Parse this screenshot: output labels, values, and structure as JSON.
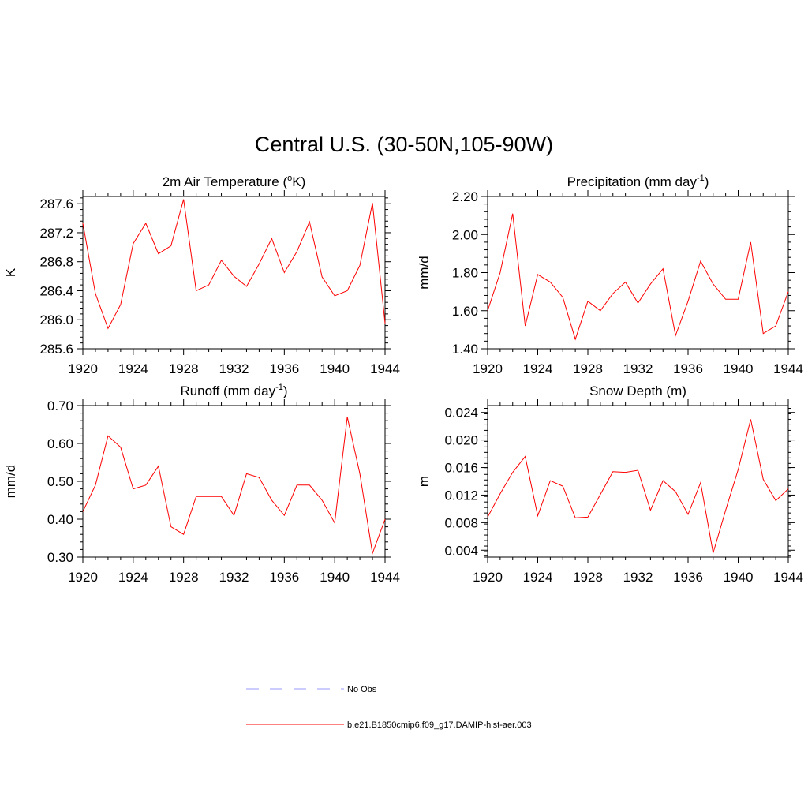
{
  "title": "Central U.S. (30-50N,105-90W)",
  "legend": {
    "entries": [
      {
        "label": "No Obs",
        "color": "#9999ff",
        "dash": true
      },
      {
        "label": "b.e21.B1850cmip6.f09_g17.DAMIP-hist-aer.003",
        "color": "#ff0000",
        "dash": false
      }
    ]
  },
  "chart_data": [
    {
      "type": "line",
      "title": "2m Air Temperature (",
      "title_sup": "o",
      "title_tail": "K)",
      "ylabel": "K",
      "xlim": [
        1920,
        1944
      ],
      "ylim": [
        285.6,
        287.7
      ],
      "xticks": [
        1920,
        1924,
        1928,
        1932,
        1936,
        1940,
        1944
      ],
      "yticks": [
        285.6,
        286.0,
        286.4,
        286.8,
        287.2,
        287.6
      ],
      "ytick_labels": [
        "285.6",
        "286.0",
        "286.4",
        "286.8",
        "287.2",
        "287.6"
      ],
      "x": [
        1920,
        1921,
        1922,
        1923,
        1924,
        1925,
        1926,
        1927,
        1928,
        1929,
        1930,
        1931,
        1932,
        1933,
        1934,
        1935,
        1936,
        1937,
        1938,
        1939,
        1940,
        1941,
        1942,
        1943,
        1944
      ],
      "series": [
        {
          "values": [
            287.33,
            286.36,
            285.88,
            286.21,
            287.05,
            287.33,
            286.91,
            287.02,
            287.66,
            286.4,
            286.48,
            286.82,
            286.6,
            286.46,
            286.77,
            287.12,
            286.65,
            286.94,
            287.35,
            286.59,
            286.33,
            286.4,
            286.75,
            287.61,
            285.95
          ]
        }
      ]
    },
    {
      "type": "line",
      "title": "Precipitation (mm day",
      "title_sup": "-1",
      "title_tail": ")",
      "ylabel": "mm/d",
      "xlim": [
        1920,
        1944
      ],
      "ylim": [
        1.4,
        2.2
      ],
      "xticks": [
        1920,
        1924,
        1928,
        1932,
        1936,
        1940,
        1944
      ],
      "yticks": [
        1.4,
        1.6,
        1.8,
        2.0,
        2.2
      ],
      "ytick_labels": [
        "1.40",
        "1.60",
        "1.80",
        "2.00",
        "2.20"
      ],
      "x": [
        1920,
        1921,
        1922,
        1923,
        1924,
        1925,
        1926,
        1927,
        1928,
        1929,
        1930,
        1931,
        1932,
        1933,
        1934,
        1935,
        1936,
        1937,
        1938,
        1939,
        1940,
        1941,
        1942,
        1943,
        1944
      ],
      "series": [
        {
          "values": [
            1.6,
            1.8,
            2.11,
            1.52,
            1.79,
            1.75,
            1.67,
            1.45,
            1.65,
            1.6,
            1.69,
            1.75,
            1.64,
            1.74,
            1.82,
            1.47,
            1.65,
            1.86,
            1.74,
            1.66,
            1.66,
            1.96,
            1.48,
            1.52,
            1.7
          ]
        }
      ]
    },
    {
      "type": "line",
      "title": "Runoff (mm day",
      "title_sup": "-1",
      "title_tail": ")",
      "ylabel": "mm/d",
      "xlim": [
        1920,
        1944
      ],
      "ylim": [
        0.3,
        0.7
      ],
      "xticks": [
        1920,
        1924,
        1928,
        1932,
        1936,
        1940,
        1944
      ],
      "yticks": [
        0.3,
        0.4,
        0.5,
        0.6,
        0.7
      ],
      "ytick_labels": [
        "0.30",
        "0.40",
        "0.50",
        "0.60",
        "0.70"
      ],
      "x": [
        1920,
        1921,
        1922,
        1923,
        1924,
        1925,
        1926,
        1927,
        1928,
        1929,
        1930,
        1931,
        1932,
        1933,
        1934,
        1935,
        1936,
        1937,
        1938,
        1939,
        1940,
        1941,
        1942,
        1943,
        1944
      ],
      "series": [
        {
          "values": [
            0.42,
            0.49,
            0.62,
            0.59,
            0.48,
            0.49,
            0.54,
            0.38,
            0.36,
            0.46,
            0.46,
            0.46,
            0.41,
            0.52,
            0.51,
            0.45,
            0.41,
            0.49,
            0.49,
            0.45,
            0.39,
            0.67,
            0.52,
            0.31,
            0.4
          ]
        }
      ]
    },
    {
      "type": "line",
      "title": "Snow Depth (m)",
      "title_sup": "",
      "title_tail": "",
      "ylabel": "m",
      "xlim": [
        1920,
        1944
      ],
      "ylim": [
        0.003,
        0.025
      ],
      "xticks": [
        1920,
        1924,
        1928,
        1932,
        1936,
        1940,
        1944
      ],
      "yticks": [
        0.004,
        0.008,
        0.012,
        0.016,
        0.02,
        0.024
      ],
      "ytick_labels": [
        "0.004",
        "0.008",
        "0.012",
        "0.016",
        "0.020",
        "0.024"
      ],
      "x": [
        1920,
        1921,
        1922,
        1923,
        1924,
        1925,
        1926,
        1927,
        1928,
        1929,
        1930,
        1931,
        1932,
        1933,
        1934,
        1935,
        1936,
        1937,
        1938,
        1939,
        1940,
        1941,
        1942,
        1943,
        1944
      ],
      "series": [
        {
          "values": [
            0.0088,
            0.0122,
            0.0153,
            0.0176,
            0.009,
            0.0141,
            0.0133,
            0.0087,
            0.0088,
            0.0121,
            0.0154,
            0.0153,
            0.0156,
            0.0098,
            0.0141,
            0.0125,
            0.0092,
            0.0138,
            0.0036,
            0.0098,
            0.0157,
            0.023,
            0.0143,
            0.0112,
            0.0129
          ]
        }
      ]
    }
  ]
}
